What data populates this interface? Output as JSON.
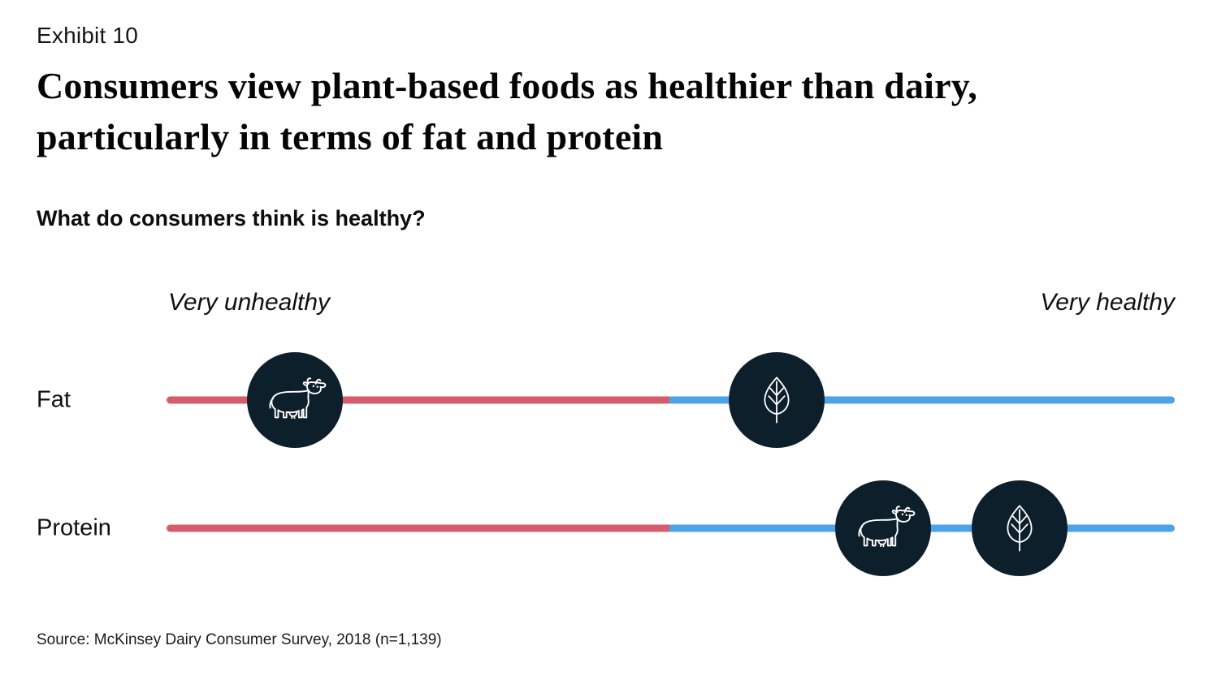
{
  "page": {
    "exhibit_label": "Exhibit 10",
    "title_line1": "Consumers view plant-based foods as healthier than dairy,",
    "title_line2": "particularly in terms of fat and protein",
    "source": "Source: McKinsey Dairy Consumer Survey, 2018 (n=1,139)"
  },
  "chart_data": {
    "type": "scatter",
    "variant": "perception-scale-dotplot",
    "title": "What do consumers think is healthy?",
    "scale": {
      "left_label": "Very unhealthy",
      "right_label": "Very healthy",
      "min": 0,
      "max": 100,
      "units": "estimated position on unhealthy-to-healthy scale (0 = very unhealthy, 100 = very healthy)",
      "red_blue_split": 49.8
    },
    "categories": [
      "Fat",
      "Protein"
    ],
    "series": [
      {
        "name": "Dairy",
        "icon": "cow-icon",
        "values": {
          "Fat": 12.7,
          "Protein": 71.1
        }
      },
      {
        "name": "Plant-based",
        "icon": "leaf-icon",
        "values": {
          "Fat": 60.5,
          "Protein": 84.6
        }
      }
    ],
    "legend_position": "none",
    "grid": false,
    "colors": {
      "unhealthy_red": "#d65c6c",
      "healthy_blue": "#4da3e8",
      "marker_circle": "#0e1f2c",
      "icon_stroke": "#ffffff"
    }
  }
}
